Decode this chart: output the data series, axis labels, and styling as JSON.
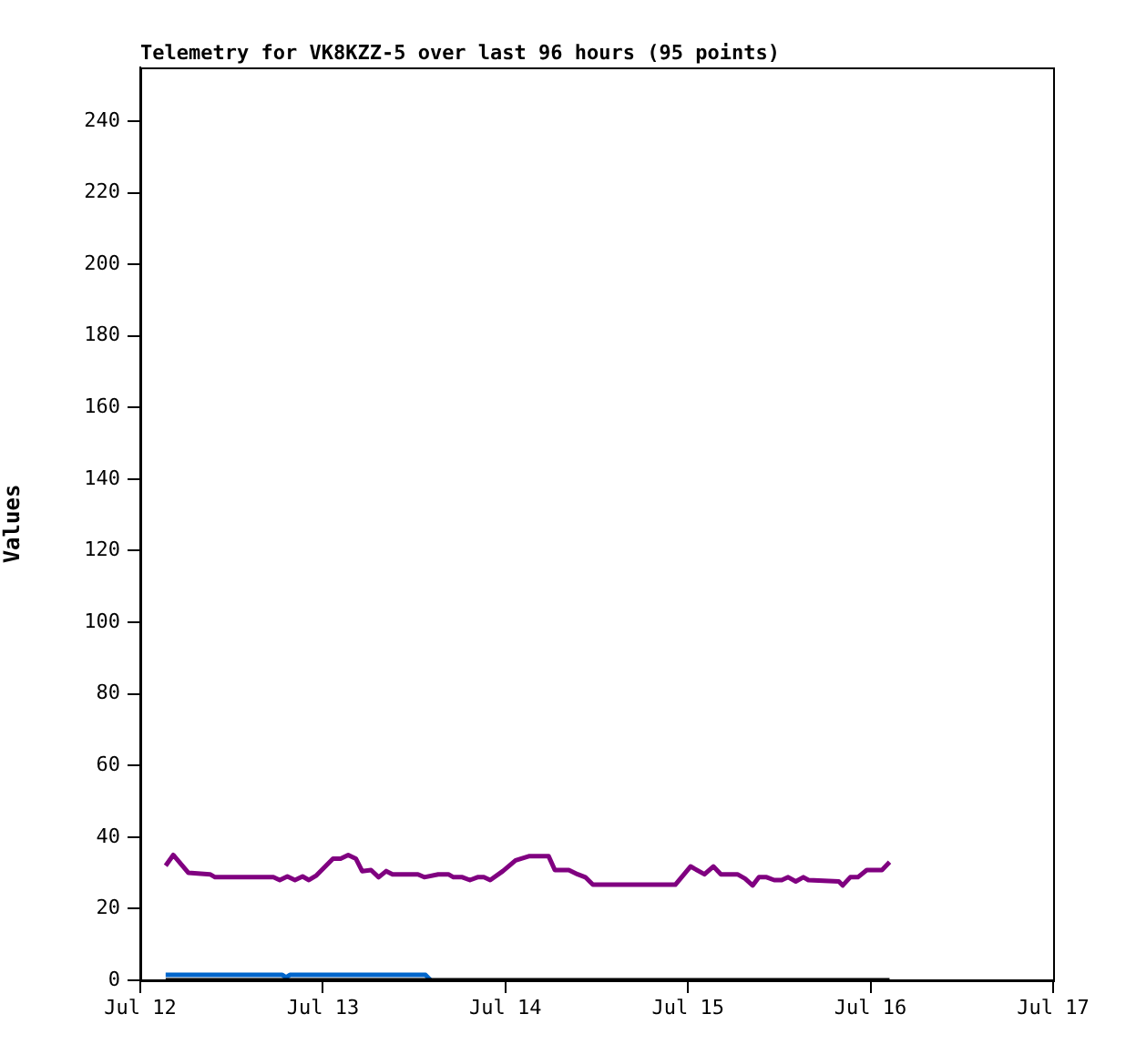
{
  "chart_data": {
    "type": "line",
    "title": "Telemetry for VK8KZZ-5 over last 96 hours (95 points)",
    "ylabel": "Values",
    "x": [
      "--07-12T03:20",
      "--07-12T04:20",
      "--07-12T06:20",
      "--07-12T09:10",
      "--07-12T09:50",
      "--07-12T17:30",
      "--07-12T18:20",
      "--07-12T19:20",
      "--07-12T20:20",
      "--07-12T21:20",
      "--07-12T22:10",
      "--07-12T23:10",
      "--07-13T01:20",
      "--07-13T02:20",
      "--07-13T03:20",
      "--07-13T04:20",
      "--07-13T05:10",
      "--07-13T06:20",
      "--07-13T07:20",
      "--07-13T08:20",
      "--07-13T09:10",
      "--07-13T12:30",
      "--07-13T13:20",
      "--07-13T15:10",
      "--07-13T16:30",
      "--07-13T17:10",
      "--07-13T18:20",
      "--07-13T19:20",
      "--07-13T20:20",
      "--07-13T21:10",
      "--07-13T22:00",
      "--07-13T23:40",
      "--07-14T01:20",
      "--07-14T03:10",
      "--07-14T05:40",
      "--07-14T06:30",
      "--07-14T08:20",
      "--07-14T09:30",
      "--07-14T10:30",
      "--07-14T11:30",
      "--07-14T22:20",
      "--07-15T00:20",
      "--07-15T02:10",
      "--07-15T03:20",
      "--07-15T04:20",
      "--07-15T06:30",
      "--07-15T07:30",
      "--07-15T08:30",
      "--07-15T09:20",
      "--07-15T10:20",
      "--07-15T11:20",
      "--07-15T12:20",
      "--07-15T13:10",
      "--07-15T14:10",
      "--07-15T15:10",
      "--07-15T15:50",
      "--07-15T19:50",
      "--07-15T20:20",
      "--07-15T21:20",
      "--07-15T22:20",
      "--07-15T23:30",
      "--07-16T01:30",
      "--07-16T02:30"
    ],
    "series": [
      {
        "color": "#000000",
        "x": [
          "--07-12T03:20",
          "--07-16T02:30"
        ],
        "values": [
          0,
          0
        ]
      },
      {
        "color": "#0066cc",
        "x": [
          "--07-12T03:20",
          "--07-12T18:40",
          "--07-12T19:10",
          "--07-12T19:40",
          "--07-13T13:30",
          "--07-13T14:10"
        ],
        "values": [
          1.5,
          1.5,
          0.8,
          1.5,
          1.5,
          0
        ]
      },
      {
        "color": "#800080",
        "values": [
          32,
          35,
          30,
          29.6,
          28.8,
          28.8,
          28,
          29,
          28,
          29,
          28,
          29.3,
          34,
          34,
          35,
          34,
          30.5,
          30.8,
          28.8,
          30.5,
          29.6,
          29.6,
          28.8,
          29.6,
          29.6,
          28.8,
          28.8,
          28,
          28.8,
          28.8,
          28,
          30.5,
          33.5,
          34.7,
          34.7,
          30.8,
          30.8,
          29.6,
          28.8,
          26.7,
          26.7,
          31.8,
          29.6,
          31.8,
          29.6,
          29.6,
          28.4,
          26.5,
          28.8,
          28.8,
          28,
          28,
          28.8,
          27.6,
          28.8,
          28,
          27.6,
          26.5,
          28.8,
          28.8,
          30.8,
          30.8,
          33
        ]
      }
    ],
    "xlim": [
      "--07-12",
      "--07-17"
    ],
    "xticks": [
      {
        "value": "--07-12",
        "label": "Jul 12"
      },
      {
        "value": "--07-13",
        "label": "Jul 13"
      },
      {
        "value": "--07-14",
        "label": "Jul 14"
      },
      {
        "value": "--07-15",
        "label": "Jul 15"
      },
      {
        "value": "--07-16",
        "label": "Jul 16"
      },
      {
        "value": "--07-17",
        "label": "Jul 17"
      }
    ],
    "ylim": [
      0,
      255
    ],
    "yticks": [
      0,
      20,
      40,
      60,
      80,
      100,
      120,
      140,
      160,
      180,
      200,
      220,
      240
    ],
    "grid": false,
    "legend": false,
    "marker": "none",
    "line_style": "solid"
  }
}
